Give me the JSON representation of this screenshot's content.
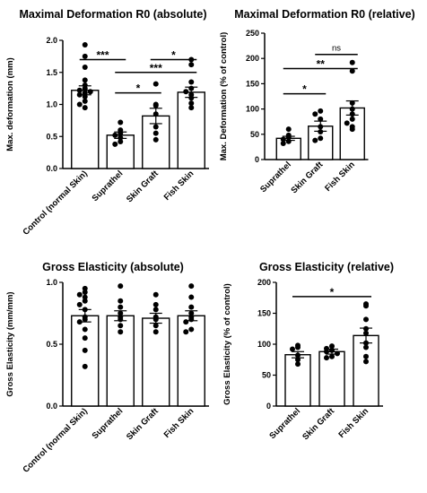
{
  "chart_data": [
    {
      "type": "bar",
      "title": "Maximal Deformation R0 (absolute)",
      "ylabel": "Max. deformation (mm)",
      "ylim": [
        0,
        2.0
      ],
      "yticks": [
        "0.0",
        "0.5",
        "1.0",
        "1.5",
        "2.0"
      ],
      "tickValues": [
        0,
        0.5,
        1.0,
        1.5,
        2.0
      ],
      "categories": [
        "Control (normal Skin)",
        "Suprathel",
        "Skin Graft",
        "Fish Skin"
      ],
      "values": [
        1.22,
        0.52,
        0.82,
        1.19
      ],
      "errors": [
        0.07,
        0.05,
        0.12,
        0.08
      ],
      "points": [
        [
          1.93,
          1.75,
          1.58,
          1.38,
          1.3,
          1.25,
          1.22,
          1.2,
          1.18,
          1.15,
          1.12,
          1.05,
          1.0,
          0.95
        ],
        [
          0.72,
          0.6,
          0.55,
          0.52,
          0.48,
          0.42,
          0.38
        ],
        [
          1.32,
          1.0,
          0.98,
          0.85,
          0.65,
          0.55,
          0.45
        ],
        [
          1.7,
          1.62,
          1.35,
          1.25,
          1.2,
          1.15,
          1.1,
          1.02,
          0.95
        ]
      ],
      "brackets": [
        {
          "from": 0,
          "to": 1,
          "y": 1.7,
          "label": "***"
        },
        {
          "from": 2,
          "to": 3,
          "y": 1.7,
          "label": "*"
        },
        {
          "from": 1,
          "to": 3,
          "y": 1.5,
          "label": "***"
        },
        {
          "from": 1,
          "to": 2,
          "y": 1.18,
          "label": "*"
        }
      ]
    },
    {
      "type": "bar",
      "title": "Maximal Deformation R0 (relative)",
      "ylabel": "Max. Deformation (% of control)",
      "ylim": [
        0,
        250
      ],
      "yticks": [
        "0",
        "50",
        "100",
        "150",
        "200",
        "250"
      ],
      "tickValues": [
        0,
        50,
        100,
        150,
        200,
        250
      ],
      "categories": [
        "Suprathel",
        "Skin Graft",
        "Fish Skin"
      ],
      "values": [
        42,
        66,
        102
      ],
      "errors": [
        4,
        10,
        14
      ],
      "points": [
        [
          60,
          48,
          44,
          40,
          36,
          32
        ],
        [
          96,
          90,
          80,
          65,
          55,
          42,
          38
        ],
        [
          192,
          175,
          112,
          100,
          90,
          80,
          72,
          65,
          60
        ]
      ],
      "brackets": [
        {
          "from": 1,
          "to": 2,
          "y": 208,
          "label": "ns"
        },
        {
          "from": 0,
          "to": 2,
          "y": 180,
          "label": "**"
        },
        {
          "from": 0,
          "to": 1,
          "y": 130,
          "label": "*"
        }
      ]
    },
    {
      "type": "bar",
      "title": "Gross Elasticity (absolute)",
      "ylabel": "Gross Elasticity (mm/mm)",
      "ylim": [
        0,
        1.0
      ],
      "yticks": [
        "0.0",
        "0.5",
        "1.0"
      ],
      "tickValues": [
        0,
        0.5,
        1.0
      ],
      "categories": [
        "Control (normal Skin)",
        "Suprathel",
        "Skin Graft",
        "Fish Skin"
      ],
      "values": [
        0.73,
        0.73,
        0.71,
        0.73
      ],
      "errors": [
        0.05,
        0.04,
        0.04,
        0.04
      ],
      "points": [
        [
          0.95,
          0.92,
          0.9,
          0.88,
          0.85,
          0.82,
          0.78,
          0.72,
          0.7,
          0.68,
          0.62,
          0.55,
          0.45,
          0.32
        ],
        [
          0.97,
          0.85,
          0.8,
          0.75,
          0.72,
          0.7,
          0.65,
          0.6
        ],
        [
          0.9,
          0.82,
          0.78,
          0.72,
          0.7,
          0.65,
          0.6
        ],
        [
          0.97,
          0.88,
          0.8,
          0.75,
          0.72,
          0.7,
          0.68,
          0.62,
          0.6
        ]
      ],
      "brackets": []
    },
    {
      "type": "bar",
      "title": "Gross Elasticity (relative)",
      "ylabel": "Gross Elasticity (% of control)",
      "ylim": [
        0,
        200
      ],
      "yticks": [
        "0",
        "50",
        "100",
        "150",
        "200"
      ],
      "tickValues": [
        0,
        50,
        100,
        150,
        200
      ],
      "categories": [
        "Suprathel",
        "Skin Graft",
        "Fish Skin"
      ],
      "values": [
        83,
        88,
        114
      ],
      "errors": [
        5,
        4,
        12
      ],
      "points": [
        [
          98,
          95,
          92,
          82,
          75,
          68
        ],
        [
          97,
          93,
          90,
          88,
          85,
          80,
          78
        ],
        [
          165,
          162,
          140,
          125,
          118,
          102,
          95,
          80,
          72
        ]
      ],
      "brackets": [
        {
          "from": 0,
          "to": 2,
          "y": 177,
          "label": "*"
        }
      ]
    }
  ]
}
